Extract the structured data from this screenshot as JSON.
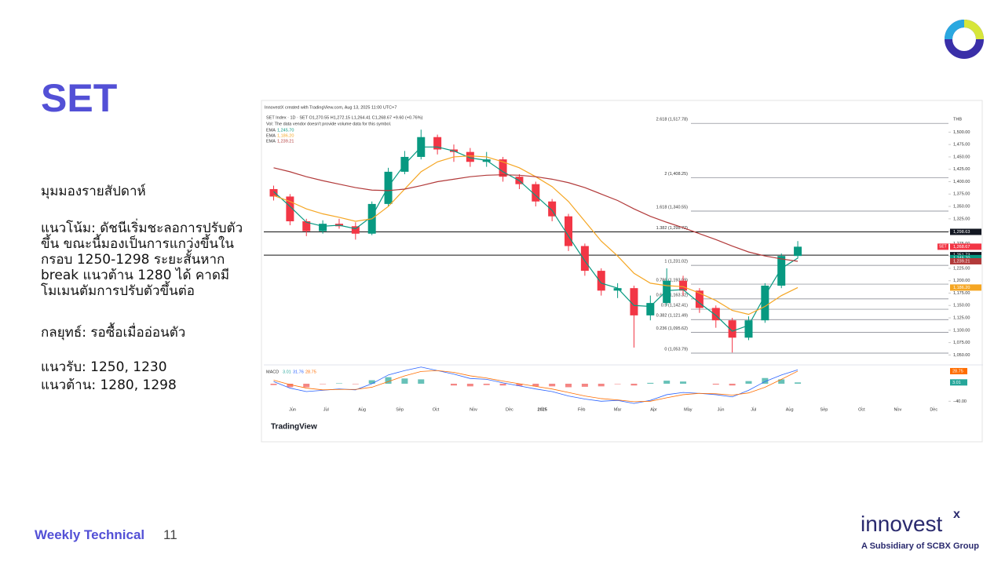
{
  "slide": {
    "title": "SET",
    "heading": "มุมมองรายสัปดาห์",
    "trend_lines": [
      "แนวโน้ม: ดัชนีเริ่มชะลอการปรับตัว",
      "ขึ้น ขณะนี้มองเป็นการแกว่งขึ้นใน",
      "กรอบ 1250-1298 ระยะสั้นหาก",
      "break แนวต้าน 1280 ได้ คาดมี",
      "โมเมนตัมการปรับตัวขึ้นต่อ"
    ],
    "strategy": "กลยุทธ์: รอซื้อเมื่ออ่อนตัว",
    "support": "แนวรับ: 1250, 1230",
    "resistance": "แนวต้าน: 1280, 1298",
    "footer": "Weekly Technical",
    "page": "11",
    "brand": "innovest",
    "brand_mark": "x",
    "brand_sub": "A Subsidiary of SCBX Group"
  },
  "chart_data": {
    "type": "candlestick",
    "credit": "InnovestX created with TradingView.com, Aug 13, 2025 11:00 UTC+7",
    "title": "SET Index · 1D · SET  O1,270.55  H1,272.15  L1,264.41  C1,268.67  +9.60 (+0.76%)",
    "note": "Vol: The data vendor doesn't provide volume data for this symbol.",
    "currency": "THB",
    "logo": "TradingView",
    "symbol": "SET",
    "open": [
      1385,
      1370,
      1320,
      1300,
      1315,
      1310,
      1295,
      1355,
      1420,
      1450,
      1490,
      1465,
      1460,
      1440,
      1445,
      1410,
      1395,
      1360,
      1330,
      1270,
      1220,
      1180,
      1185,
      1130,
      1155,
      1200,
      1180,
      1145,
      1120,
      1085,
      1120,
      1190,
      1250
    ],
    "high": [
      1392,
      1375,
      1325,
      1322,
      1325,
      1318,
      1360,
      1428,
      1462,
      1505,
      1495,
      1475,
      1468,
      1460,
      1450,
      1415,
      1400,
      1365,
      1335,
      1275,
      1225,
      1195,
      1190,
      1170,
      1225,
      1210,
      1185,
      1150,
      1125,
      1128,
      1195,
      1255,
      1280
    ],
    "low": [
      1362,
      1312,
      1290,
      1295,
      1305,
      1283,
      1292,
      1350,
      1415,
      1445,
      1455,
      1440,
      1430,
      1430,
      1400,
      1385,
      1350,
      1320,
      1260,
      1210,
      1170,
      1165,
      1065,
      1120,
      1150,
      1170,
      1135,
      1105,
      1055,
      1080,
      1115,
      1185,
      1245
    ],
    "close": [
      1370,
      1320,
      1300,
      1315,
      1310,
      1295,
      1355,
      1420,
      1450,
      1490,
      1465,
      1460,
      1440,
      1445,
      1410,
      1395,
      1360,
      1330,
      1270,
      1220,
      1180,
      1185,
      1130,
      1155,
      1200,
      1180,
      1145,
      1120,
      1085,
      1120,
      1190,
      1250,
      1268.67
    ],
    "up_color": "#089981",
    "down_color": "#f23645",
    "last_price": {
      "value": 1268.67,
      "label": "1,268.67"
    },
    "series": [
      {
        "name": "EMA",
        "color": "#089981",
        "last": {
          "value": 1245.7,
          "label": "1,245.70"
        },
        "values": [
          1380,
          1350,
          1318,
          1310,
          1312,
          1305,
          1330,
          1390,
          1435,
          1470,
          1470,
          1462,
          1448,
          1443,
          1420,
          1402,
          1372,
          1342,
          1290,
          1240,
          1195,
          1185,
          1150,
          1148,
          1180,
          1182,
          1155,
          1130,
          1098,
          1110,
          1170,
          1225,
          1245.7
        ]
      },
      {
        "name": "EMA",
        "color": "#f5a623",
        "last": {
          "value": 1186.2,
          "label": "1,186.20"
        },
        "values": [
          1372,
          1360,
          1345,
          1335,
          1328,
          1320,
          1325,
          1350,
          1385,
          1420,
          1440,
          1450,
          1452,
          1450,
          1440,
          1428,
          1410,
          1390,
          1360,
          1320,
          1280,
          1250,
          1215,
          1195,
          1190,
          1188,
          1175,
          1160,
          1140,
          1132,
          1148,
          1170,
          1186.2
        ]
      },
      {
        "name": "EMA",
        "color": "#b23a3a",
        "last": {
          "value": 1239.21,
          "label": "1,239.21"
        },
        "values": [
          1428,
          1420,
          1410,
          1402,
          1395,
          1388,
          1383,
          1382,
          1385,
          1392,
          1400,
          1405,
          1410,
          1413,
          1414,
          1413,
          1410,
          1405,
          1398,
          1388,
          1375,
          1362,
          1345,
          1330,
          1318,
          1307,
          1295,
          1283,
          1270,
          1258,
          1250,
          1244,
          1239.21
        ]
      }
    ],
    "levels": [
      {
        "value": 1298.63,
        "label": "1,298.63"
      },
      {
        "value": 1251.73,
        "label": "1,251.73"
      }
    ],
    "fibonacci": [
      {
        "value": 1517.78,
        "label": "2.618 (1,517.78)"
      },
      {
        "value": 1408.25,
        "label": "2 (1,408.25)"
      },
      {
        "value": 1340.55,
        "label": "1.618 (1,340.55)"
      },
      {
        "value": 1298.72,
        "label": "1.382 (1,298.72)"
      },
      {
        "value": 1231.02,
        "label": "1 (1,231.02)"
      },
      {
        "value": 1193.09,
        "label": "0.786 (1,193.09)"
      },
      {
        "value": 1163.32,
        "label": "0.618 (1,163.32)"
      },
      {
        "value": 1142.41,
        "label": "0.5 (1,142.41)"
      },
      {
        "value": 1121.49,
        "label": "0.382 (1,121.49)"
      },
      {
        "value": 1095.62,
        "label": "0.236 (1,095.62)"
      },
      {
        "value": 1053.79,
        "label": "0 (1,053.79)"
      }
    ],
    "xlim": [
      -0.6,
      41.2
    ],
    "xticks": [
      {
        "value": 1.15,
        "label": "Jun"
      },
      {
        "value": 3.2,
        "label": "Jul"
      },
      {
        "value": 5.4,
        "label": "Aug"
      },
      {
        "value": 7.7,
        "label": "Sep"
      },
      {
        "value": 9.9,
        "label": "Oct"
      },
      {
        "value": 12.2,
        "label": "Nov"
      },
      {
        "value": 14.4,
        "label": "Dec"
      },
      {
        "value": 16.4,
        "label": "2025"
      },
      {
        "value": 18.8,
        "label": "Feb"
      },
      {
        "value": 21,
        "label": "Mar"
      },
      {
        "value": 23.2,
        "label": "Apr"
      },
      {
        "value": 25.3,
        "label": "May"
      },
      {
        "value": 27.3,
        "label": "Jun"
      },
      {
        "value": 29.3,
        "label": "Jul"
      },
      {
        "value": 31.5,
        "label": "Aug"
      },
      {
        "value": 33.6,
        "label": "Sep"
      },
      {
        "value": 35.9,
        "label": "Oct"
      },
      {
        "value": 38.1,
        "label": "Nov"
      },
      {
        "value": 40.3,
        "label": "Dec"
      }
    ],
    "ylim": [
      1030,
      1545
    ],
    "yticks": [
      {
        "value": 1050,
        "label": "1,050.00"
      },
      {
        "value": 1075,
        "label": "1,075.00"
      },
      {
        "value": 1100,
        "label": "1,100.00"
      },
      {
        "value": 1125,
        "label": "1,125.00"
      },
      {
        "value": 1150,
        "label": "1,150.00"
      },
      {
        "value": 1175,
        "label": "1,175.00"
      },
      {
        "value": 1200,
        "label": "1,200.00"
      },
      {
        "value": 1225,
        "label": "1,225.00"
      },
      {
        "value": 1250,
        "label": "1,250.00"
      },
      {
        "value": 1275,
        "label": "1,275.00"
      },
      {
        "value": 1300,
        "label": "1,300.00"
      },
      {
        "value": 1325,
        "label": "1,325.00"
      },
      {
        "value": 1350,
        "label": "1,350.00"
      },
      {
        "value": 1375,
        "label": "1,375.00"
      },
      {
        "value": 1400,
        "label": "1,400.00"
      },
      {
        "value": 1425,
        "label": "1,425.00"
      },
      {
        "value": 1450,
        "label": "1,450.00"
      },
      {
        "value": 1475,
        "label": "1,475.00"
      },
      {
        "value": 1500,
        "label": "1,500.00"
      }
    ],
    "macd": {
      "name": "MACD",
      "ylim": [
        -52,
        43
      ],
      "yticks": [
        {
          "value": -40,
          "label": "−40.00"
        }
      ],
      "hist_last": {
        "value": 3.01,
        "label": "3.01"
      },
      "macd_last": {
        "value": 31.76,
        "label": "31.76"
      },
      "signal_last": {
        "value": 28.75,
        "label": "28.75"
      },
      "hist": [
        -3,
        -8,
        -8,
        -1,
        1,
        -1,
        8,
        15,
        12,
        10,
        0,
        -4,
        -6,
        -3,
        -4,
        -5,
        -6,
        -6,
        -8,
        -7,
        -6,
        -1,
        -4,
        2,
        7,
        5,
        0,
        -2,
        -4,
        6,
        13,
        10,
        3.01
      ],
      "macd_line": [
        5,
        -10,
        -18,
        -15,
        -12,
        -14,
        0,
        20,
        30,
        38,
        30,
        22,
        12,
        10,
        2,
        -5,
        -12,
        -18,
        -28,
        -35,
        -40,
        -38,
        -45,
        -38,
        -25,
        -20,
        -22,
        -25,
        -30,
        -15,
        5,
        20,
        31.76
      ],
      "signal": [
        8,
        -2,
        -10,
        -14,
        -13,
        -13,
        -8,
        5,
        18,
        28,
        30,
        26,
        18,
        13,
        6,
        0,
        -6,
        -12,
        -20,
        -28,
        -34,
        -37,
        -41,
        -40,
        -32,
        -25,
        -22,
        -23,
        -26,
        -21,
        -8,
        10,
        28.75
      ],
      "macd_color": "#2962ff",
      "signal_color": "#ff6d00",
      "hist_up": "#26a69a",
      "hist_down": "#ef5350"
    }
  }
}
